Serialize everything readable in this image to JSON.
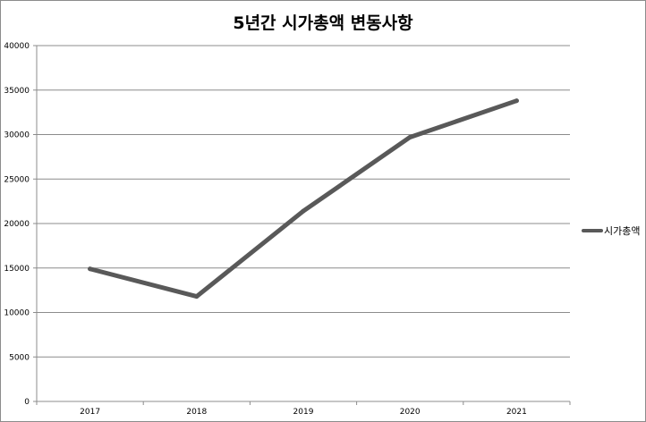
{
  "chart_data": {
    "type": "line",
    "title": "5년간 시가총액 변동사항",
    "xlabel": "",
    "ylabel": "",
    "categories": [
      "2017",
      "2018",
      "2019",
      "2020",
      "2021"
    ],
    "series": [
      {
        "name": "시가총액",
        "values": [
          14900,
          11800,
          21400,
          29700,
          33800
        ],
        "color": "#595959"
      }
    ],
    "ylim": [
      0,
      40000
    ],
    "yticks": [
      "0",
      "5000",
      "10000",
      "15000",
      "20000",
      "25000",
      "30000",
      "35000",
      "40000"
    ],
    "grid": true,
    "legend_position": "right"
  }
}
